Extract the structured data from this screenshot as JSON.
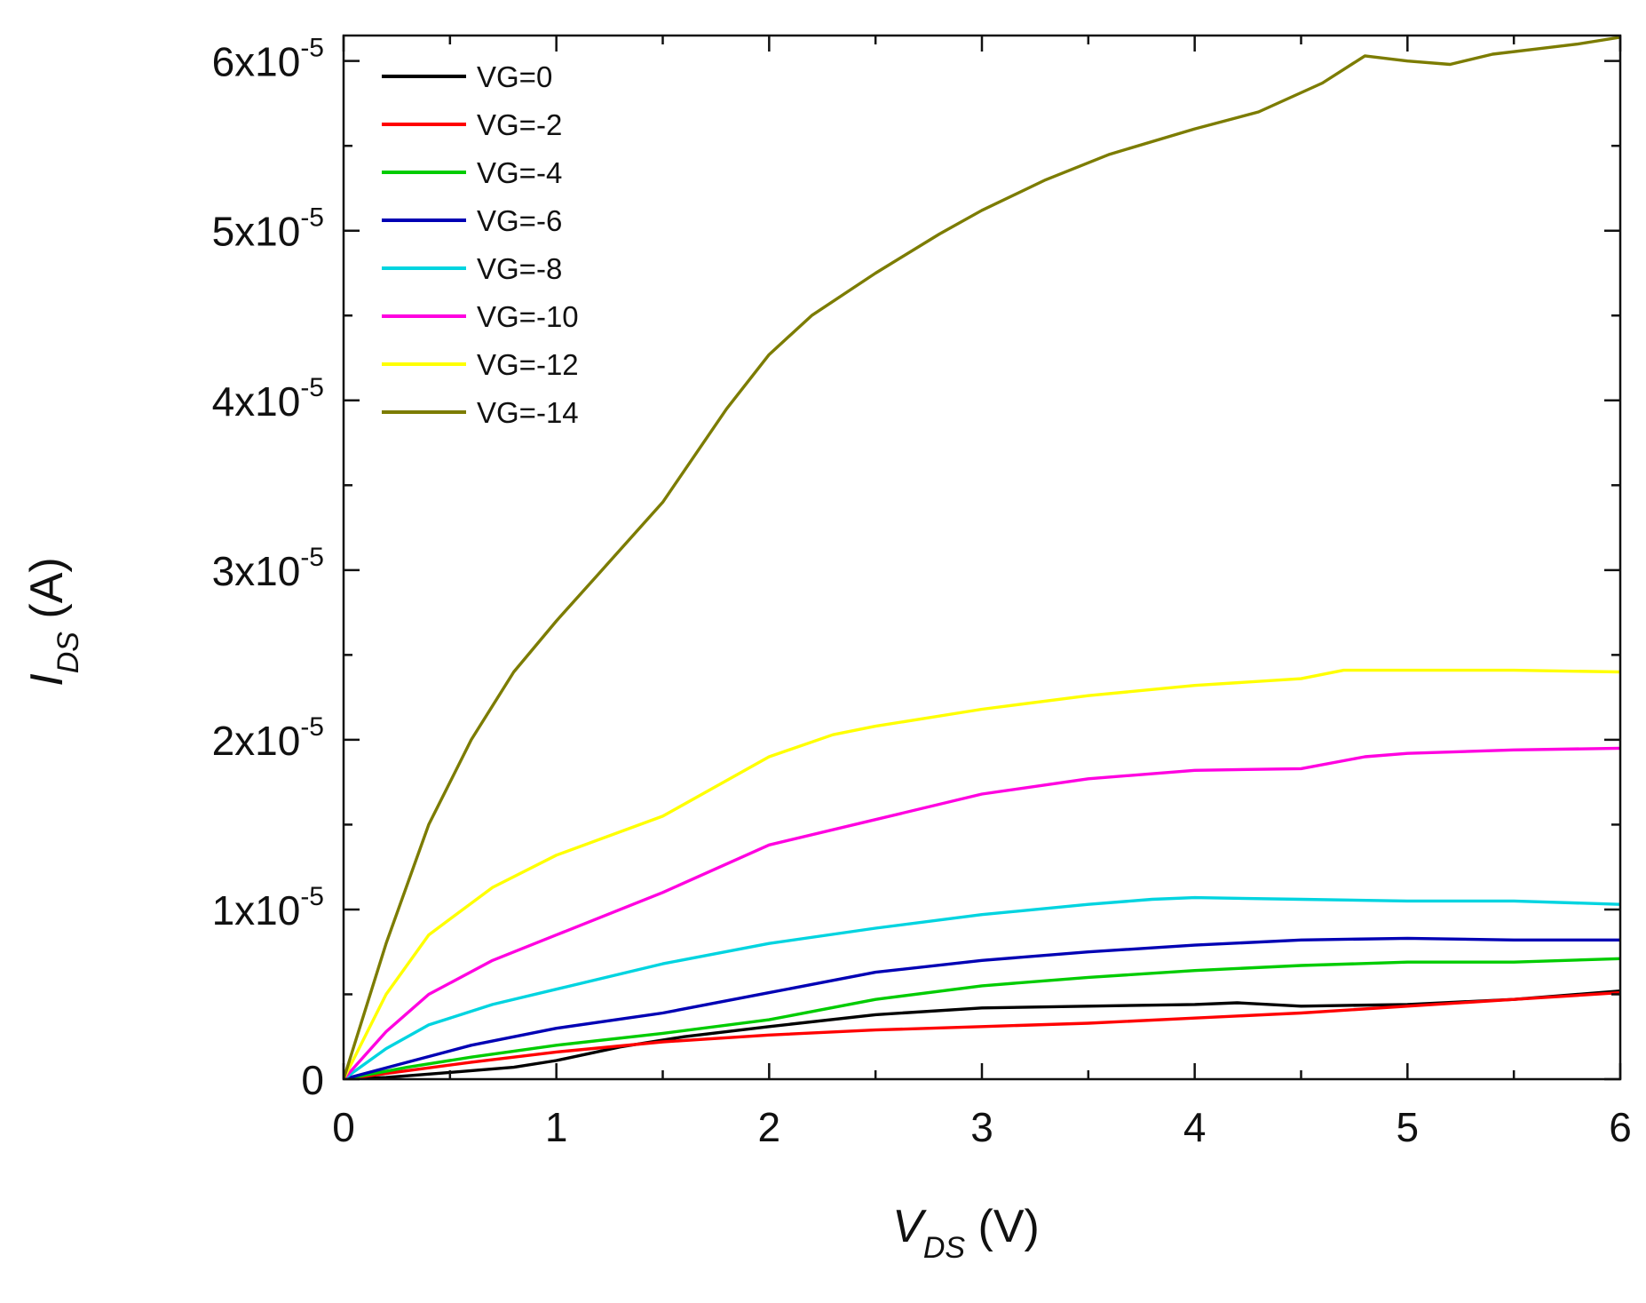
{
  "chart_data": {
    "type": "line",
    "title": "",
    "xlabel": {
      "symbol": "V",
      "subscript": "DS",
      "unit": " (V)"
    },
    "ylabel": {
      "symbol": "I",
      "subscript": "DS",
      "unit": " (A)"
    },
    "xlim": [
      0,
      6
    ],
    "ylim": [
      0,
      6.15e-05
    ],
    "x_ticks": [
      0,
      1,
      2,
      3,
      4,
      5,
      6
    ],
    "x_tick_labels": [
      "0",
      "1",
      "2",
      "3",
      "4",
      "5",
      "6"
    ],
    "y_ticks": [
      0,
      1e-05,
      2e-05,
      3e-05,
      4e-05,
      5e-05,
      6e-05
    ],
    "y_tick_labels": [
      {
        "mantissa": "0",
        "exponent": ""
      },
      {
        "mantissa": "1x10",
        "exponent": "-5"
      },
      {
        "mantissa": "2x10",
        "exponent": "-5"
      },
      {
        "mantissa": "3x10",
        "exponent": "-5"
      },
      {
        "mantissa": "4x10",
        "exponent": "-5"
      },
      {
        "mantissa": "5x10",
        "exponent": "-5"
      },
      {
        "mantissa": "6x10",
        "exponent": "-5"
      }
    ],
    "legend_position": "top-left",
    "grid": false,
    "series": [
      {
        "name": "VG=0",
        "color": "#000000",
        "x": [
          0,
          0.2,
          0.5,
          0.8,
          1.0,
          1.3,
          1.6,
          2.0,
          2.5,
          3.0,
          3.5,
          4.0,
          4.2,
          4.5,
          5.0,
          5.5,
          6.0
        ],
        "y": [
          0,
          1e-07,
          4e-07,
          7e-07,
          1.1e-06,
          1.9e-06,
          2.5e-06,
          3.1e-06,
          3.8e-06,
          4.2e-06,
          4.3e-06,
          4.4e-06,
          4.5e-06,
          4.3e-06,
          4.4e-06,
          4.7e-06,
          5.2e-06
        ]
      },
      {
        "name": "VG=-2",
        "color": "#ff0000",
        "x": [
          0,
          0.3,
          0.6,
          1.0,
          1.5,
          2.0,
          2.5,
          3.0,
          3.5,
          4.0,
          4.5,
          5.0,
          5.5,
          6.0
        ],
        "y": [
          0,
          5e-07,
          1e-06,
          1.6e-06,
          2.2e-06,
          2.6e-06,
          2.9e-06,
          3.1e-06,
          3.3e-06,
          3.6e-06,
          3.9e-06,
          4.3e-06,
          4.7e-06,
          5.1e-06
        ]
      },
      {
        "name": "VG=-4",
        "color": "#00cc00",
        "x": [
          0,
          0.3,
          0.6,
          1.0,
          1.5,
          2.0,
          2.5,
          3.0,
          3.5,
          4.0,
          4.5,
          5.0,
          5.5,
          6.0
        ],
        "y": [
          0,
          7e-07,
          1.3e-06,
          2e-06,
          2.7e-06,
          3.5e-06,
          4.7e-06,
          5.5e-06,
          6e-06,
          6.4e-06,
          6.7e-06,
          6.9e-06,
          6.9e-06,
          7.1e-06
        ]
      },
      {
        "name": "VG=-6",
        "color": "#0000b4",
        "x": [
          0,
          0.3,
          0.6,
          1.0,
          1.5,
          2.0,
          2.5,
          3.0,
          3.5,
          4.0,
          4.5,
          5.0,
          5.5,
          6.0
        ],
        "y": [
          0,
          1e-06,
          2e-06,
          3e-06,
          3.9e-06,
          5.1e-06,
          6.3e-06,
          7e-06,
          7.5e-06,
          7.9e-06,
          8.2e-06,
          8.3e-06,
          8.2e-06,
          8.2e-06
        ]
      },
      {
        "name": "VG=-8",
        "color": "#00d4e0",
        "x": [
          0,
          0.2,
          0.4,
          0.7,
          1.0,
          1.5,
          2.0,
          2.5,
          3.0,
          3.5,
          3.8,
          4.0,
          4.5,
          5.0,
          5.5,
          6.0
        ],
        "y": [
          0,
          1.8e-06,
          3.2e-06,
          4.4e-06,
          5.3e-06,
          6.8e-06,
          8e-06,
          8.9e-06,
          9.7e-06,
          1.03e-05,
          1.06e-05,
          1.07e-05,
          1.06e-05,
          1.05e-05,
          1.05e-05,
          1.03e-05
        ]
      },
      {
        "name": "VG=-10",
        "color": "#ff00e0",
        "x": [
          0,
          0.2,
          0.4,
          0.7,
          1.0,
          1.5,
          2.0,
          2.5,
          3.0,
          3.5,
          4.0,
          4.5,
          4.8,
          5.0,
          5.5,
          6.0
        ],
        "y": [
          0,
          2.8e-06,
          5e-06,
          7e-06,
          8.5e-06,
          1.1e-05,
          1.38e-05,
          1.53e-05,
          1.68e-05,
          1.77e-05,
          1.82e-05,
          1.83e-05,
          1.9e-05,
          1.92e-05,
          1.94e-05,
          1.95e-05
        ]
      },
      {
        "name": "VG=-12",
        "color": "#ffff00",
        "x": [
          0,
          0.2,
          0.4,
          0.7,
          1.0,
          1.5,
          2.0,
          2.3,
          2.5,
          3.0,
          3.5,
          4.0,
          4.5,
          4.7,
          5.0,
          5.5,
          6.0
        ],
        "y": [
          0,
          5e-06,
          8.5e-06,
          1.13e-05,
          1.32e-05,
          1.55e-05,
          1.9e-05,
          2.03e-05,
          2.08e-05,
          2.18e-05,
          2.26e-05,
          2.32e-05,
          2.36e-05,
          2.41e-05,
          2.41e-05,
          2.41e-05,
          2.4e-05
        ]
      },
      {
        "name": "VG=-14",
        "color": "#7c7c00",
        "x": [
          0,
          0.2,
          0.4,
          0.6,
          0.8,
          1.0,
          1.2,
          1.5,
          1.8,
          2.0,
          2.2,
          2.5,
          2.8,
          3.0,
          3.3,
          3.6,
          4.0,
          4.3,
          4.6,
          4.8,
          5.0,
          5.2,
          5.4,
          5.6,
          5.8,
          6.0
        ],
        "y": [
          0,
          8e-06,
          1.5e-05,
          2e-05,
          2.4e-05,
          2.7e-05,
          2.98e-05,
          3.4e-05,
          3.95e-05,
          4.27e-05,
          4.5e-05,
          4.75e-05,
          4.98e-05,
          5.12e-05,
          5.3e-05,
          5.45e-05,
          5.6e-05,
          5.7e-05,
          5.87e-05,
          6.03e-05,
          6e-05,
          5.98e-05,
          6.04e-05,
          6.07e-05,
          6.1e-05,
          6.14e-05
        ]
      }
    ]
  }
}
